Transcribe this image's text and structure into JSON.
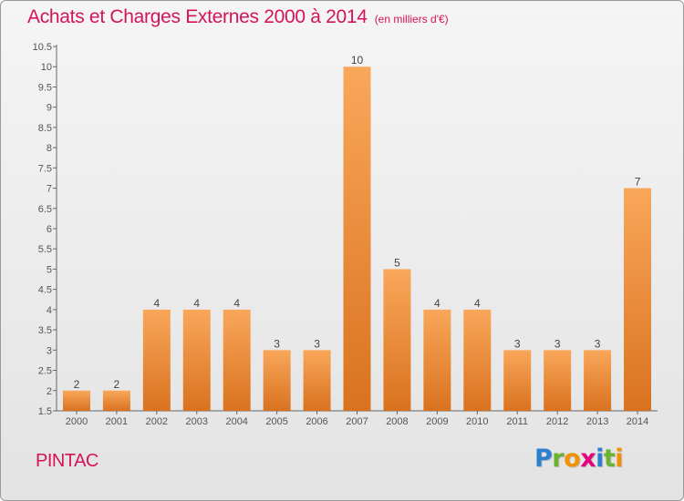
{
  "title": "Achats et Charges Externes 2000 à 2014",
  "subtitle": "(en milliers d'€)",
  "commune": "PINTAC",
  "brand": {
    "name": "Proxiti",
    "letters": [
      {
        "ch": "P",
        "color": "#2a7fd0"
      },
      {
        "ch": "r",
        "color": "#6ab32e"
      },
      {
        "ch": "o",
        "color": "#f39200"
      },
      {
        "ch": "x",
        "color": "#e6007e"
      },
      {
        "ch": "i",
        "color": "#2a7fd0"
      },
      {
        "ch": "t",
        "color": "#6ab32e"
      },
      {
        "ch": "i",
        "color": "#f39200"
      }
    ]
  },
  "colors": {
    "title": "#d4145a",
    "bar_top": "#f9a75a",
    "bar_bottom": "#d9721f"
  },
  "chart_data": {
    "type": "bar",
    "title": "Achats et Charges Externes 2000 à 2014",
    "subtitle": "(en milliers d'€)",
    "xlabel": "",
    "ylabel": "",
    "categories": [
      "2000",
      "2001",
      "2002",
      "2003",
      "2004",
      "2005",
      "2006",
      "2007",
      "2008",
      "2009",
      "2010",
      "2011",
      "2012",
      "2013",
      "2014"
    ],
    "values": [
      2,
      2,
      4,
      4,
      4,
      3,
      3,
      10,
      5,
      4,
      4,
      3,
      3,
      3,
      7
    ],
    "ylim": [
      1.5,
      10.5
    ],
    "yticks": [
      "1.5",
      "2",
      "2.5",
      "3",
      "3.5",
      "4",
      "4.5",
      "5",
      "5.5",
      "6",
      "6.5",
      "7",
      "7.5",
      "8",
      "8.5",
      "9",
      "9.5",
      "10",
      "10.5"
    ],
    "grid": false,
    "legend": "none"
  }
}
